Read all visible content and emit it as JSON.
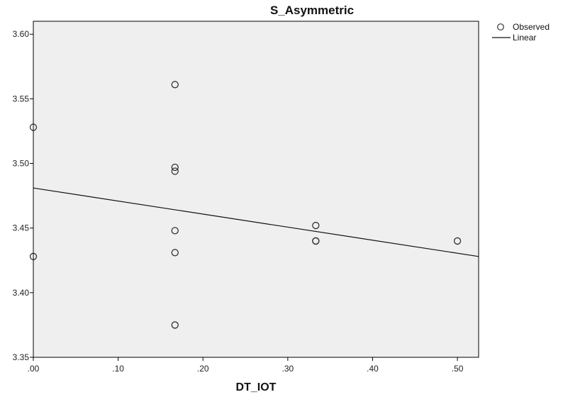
{
  "chart_data": {
    "type": "scatter",
    "title": "S_Asymmetric",
    "xlabel": "DT_IOT",
    "ylabel": "",
    "xlim": [
      0.0,
      0.525
    ],
    "ylim": [
      3.35,
      3.61
    ],
    "x_ticks": [
      0.0,
      0.1,
      0.2,
      0.3,
      0.4,
      0.5
    ],
    "x_tick_labels": [
      ".00",
      ".10",
      ".20",
      ".30",
      ".40",
      ".50"
    ],
    "y_ticks": [
      3.35,
      3.4,
      3.45,
      3.5,
      3.55,
      3.6
    ],
    "y_tick_labels": [
      "3.35",
      "3.40",
      "3.45",
      "3.50",
      "3.55",
      "3.60"
    ],
    "grid": false,
    "legend_position": "top-right",
    "series": [
      {
        "name": "Observed",
        "kind": "points",
        "x": [
          0.0,
          0.0,
          0.167,
          0.167,
          0.167,
          0.167,
          0.167,
          0.167,
          0.333,
          0.333,
          0.333,
          0.5
        ],
        "y": [
          3.528,
          3.428,
          3.561,
          3.497,
          3.494,
          3.448,
          3.431,
          3.375,
          3.452,
          3.44,
          3.44,
          3.44
        ]
      },
      {
        "name": "Linear",
        "kind": "line",
        "x": [
          0.0,
          0.525
        ],
        "y": [
          3.481,
          3.428
        ]
      }
    ],
    "colors": {
      "plot_background": "#efefef",
      "frame": "#000000",
      "marker_stroke": "#333333",
      "line": "#111111"
    }
  }
}
